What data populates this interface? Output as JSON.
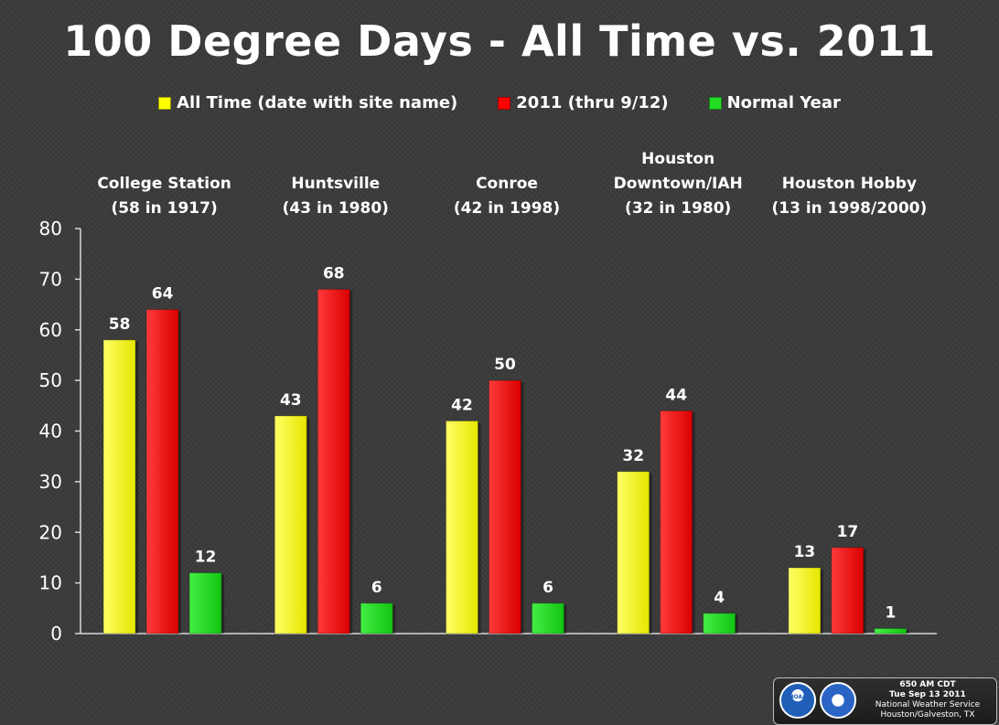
{
  "title": "100 Degree Days - All Time vs. 2011",
  "legend": [
    {
      "label": "All Time (date with site name)",
      "color": "#ffff00"
    },
    {
      "label": "2011 (thru 9/12)",
      "color": "#ff0000"
    },
    {
      "label": "Normal Year",
      "color": "#22dd22"
    }
  ],
  "chart_data": {
    "type": "bar",
    "title": "100 Degree Days - All Time vs. 2011",
    "xlabel": "",
    "ylabel": "",
    "ylim": [
      0,
      80
    ],
    "yticks": [
      0,
      10,
      20,
      30,
      40,
      50,
      60,
      70,
      80
    ],
    "legend_position": "top",
    "grid": false,
    "categories": [
      {
        "lines": [
          "College Station",
          "(58 in 1917)"
        ]
      },
      {
        "lines": [
          "Huntsville",
          "(43 in 1980)"
        ]
      },
      {
        "lines": [
          "Conroe",
          "(42 in 1998)"
        ]
      },
      {
        "lines": [
          "Houston",
          "Downtown/IAH",
          "(32 in 1980)"
        ]
      },
      {
        "lines": [
          "Houston Hobby",
          "(13 in 1998/2000)"
        ]
      }
    ],
    "series": [
      {
        "name": "All Time (date with site name)",
        "color": "#ffff00",
        "values": [
          58,
          43,
          42,
          32,
          13
        ]
      },
      {
        "name": "2011 (thru 9/12)",
        "color": "#ff0000",
        "values": [
          64,
          68,
          50,
          44,
          17
        ]
      },
      {
        "name": "Normal Year",
        "color": "#22dd22",
        "values": [
          12,
          6,
          6,
          4,
          1
        ]
      }
    ]
  },
  "badge": {
    "time": "650 AM CDT",
    "date": "Tue Sep 13 2011",
    "office": "National Weather Service",
    "location": "Houston/Galveston, TX",
    "noaa_label": "NOAA"
  }
}
